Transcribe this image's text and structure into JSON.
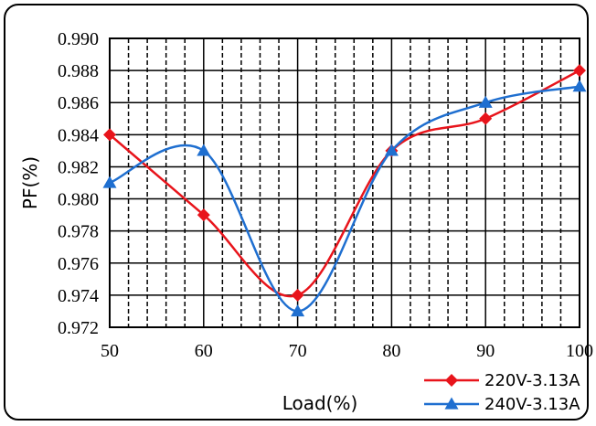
{
  "chart_data": {
    "type": "line",
    "x": [
      50,
      60,
      70,
      80,
      90,
      100
    ],
    "series": [
      {
        "name": "220V-3.13A",
        "values": [
          0.984,
          0.979,
          0.974,
          0.983,
          0.985,
          0.988
        ],
        "color": "#e8141b",
        "marker": "diamond"
      },
      {
        "name": "240V-3.13A",
        "values": [
          0.981,
          0.983,
          0.973,
          0.983,
          0.986,
          0.987
        ],
        "color": "#1f6fd0",
        "marker": "triangle"
      }
    ],
    "title": "",
    "xlabel": "Load(%)",
    "ylabel": "PF(%)",
    "xlim": [
      50,
      100
    ],
    "ylim": [
      0.972,
      0.99
    ],
    "xticks": [
      "50",
      "60",
      "70",
      "80",
      "90",
      "100"
    ],
    "yticks": [
      "0.990",
      "0.988",
      "0.986",
      "0.984",
      "0.982",
      "0.980",
      "0.978",
      "0.976",
      "0.974",
      "0.972"
    ],
    "grid": true,
    "legend_position": "bottom-right"
  }
}
